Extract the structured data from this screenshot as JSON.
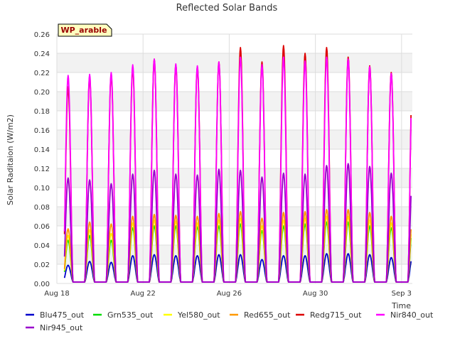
{
  "chart_data": {
    "type": "line",
    "title": "Reflected Solar Bands",
    "xlabel": "Time",
    "ylabel": "Solar Raditaion (W/m2)",
    "annotation": "WP_arable",
    "xlim": [
      "2024-08-18",
      "2024-09-04T12:00"
    ],
    "ylim": [
      0,
      0.26
    ],
    "x_ticks": [
      {
        "label": "Aug 18",
        "day": 0
      },
      {
        "label": "Aug 22",
        "day": 4
      },
      {
        "label": "Aug 26",
        "day": 8
      },
      {
        "label": "Aug 30",
        "day": 12
      },
      {
        "label": "Sep 3",
        "day": 16
      }
    ],
    "y_ticks": [
      "0.00",
      "0.02",
      "0.04",
      "0.06",
      "0.08",
      "0.10",
      "0.12",
      "0.14",
      "0.16",
      "0.18",
      "0.20",
      "0.22",
      "0.24",
      "0.26"
    ],
    "grid": true,
    "legend_position": "bottom",
    "day_dates": [
      "Aug 18",
      "Aug 19",
      "Aug 20",
      "Aug 21",
      "Aug 22",
      "Aug 23",
      "Aug 24",
      "Aug 25",
      "Aug 26",
      "Aug 27",
      "Aug 28",
      "Aug 29",
      "Aug 30",
      "Aug 31",
      "Sep 1",
      "Sep 2",
      "Sep 3",
      "Sep 4"
    ],
    "series": [
      {
        "name": "Blu475_out",
        "color": "#0000cc",
        "daily_peaks": [
          0.019,
          0.023,
          0.022,
          0.029,
          0.03,
          0.029,
          0.029,
          0.03,
          0.03,
          0.025,
          0.029,
          0.029,
          0.031,
          0.031,
          0.03,
          0.027,
          0.03,
          0.0
        ]
      },
      {
        "name": "Grn535_out",
        "color": "#00dd00",
        "daily_peaks": [
          0.045,
          0.05,
          0.045,
          0.058,
          0.06,
          0.06,
          0.059,
          0.06,
          0.062,
          0.055,
          0.06,
          0.062,
          0.064,
          0.064,
          0.06,
          0.058,
          0.062,
          0.0
        ]
      },
      {
        "name": "Yel580_out",
        "color": "#ffff00",
        "daily_peaks": [
          0.05,
          0.056,
          0.052,
          0.063,
          0.066,
          0.065,
          0.063,
          0.066,
          0.068,
          0.06,
          0.066,
          0.068,
          0.07,
          0.07,
          0.066,
          0.063,
          0.067,
          0.0
        ]
      },
      {
        "name": "Red655_out",
        "color": "#ff9900",
        "daily_peaks": [
          0.057,
          0.064,
          0.062,
          0.07,
          0.072,
          0.071,
          0.07,
          0.073,
          0.075,
          0.068,
          0.074,
          0.075,
          0.077,
          0.077,
          0.074,
          0.07,
          0.074,
          0.0
        ]
      },
      {
        "name": "Redg715_out",
        "color": "#dd0000",
        "daily_peaks": [
          0.205,
          0.216,
          0.218,
          0.225,
          0.234,
          0.228,
          0.226,
          0.231,
          0.246,
          0.231,
          0.248,
          0.24,
          0.246,
          0.236,
          0.227,
          0.22,
          0.231,
          0.0
        ]
      },
      {
        "name": "Nir840_out",
        "color": "#ff00ff",
        "daily_peaks": [
          0.217,
          0.218,
          0.22,
          0.228,
          0.234,
          0.229,
          0.227,
          0.231,
          0.236,
          0.228,
          0.236,
          0.232,
          0.236,
          0.234,
          0.226,
          0.219,
          0.227,
          0.0
        ]
      },
      {
        "name": "Nir945_out",
        "color": "#9900cc",
        "daily_peaks": [
          0.11,
          0.108,
          0.104,
          0.114,
          0.118,
          0.114,
          0.113,
          0.119,
          0.118,
          0.111,
          0.115,
          0.114,
          0.123,
          0.125,
          0.122,
          0.115,
          0.12,
          0.0
        ]
      }
    ]
  }
}
